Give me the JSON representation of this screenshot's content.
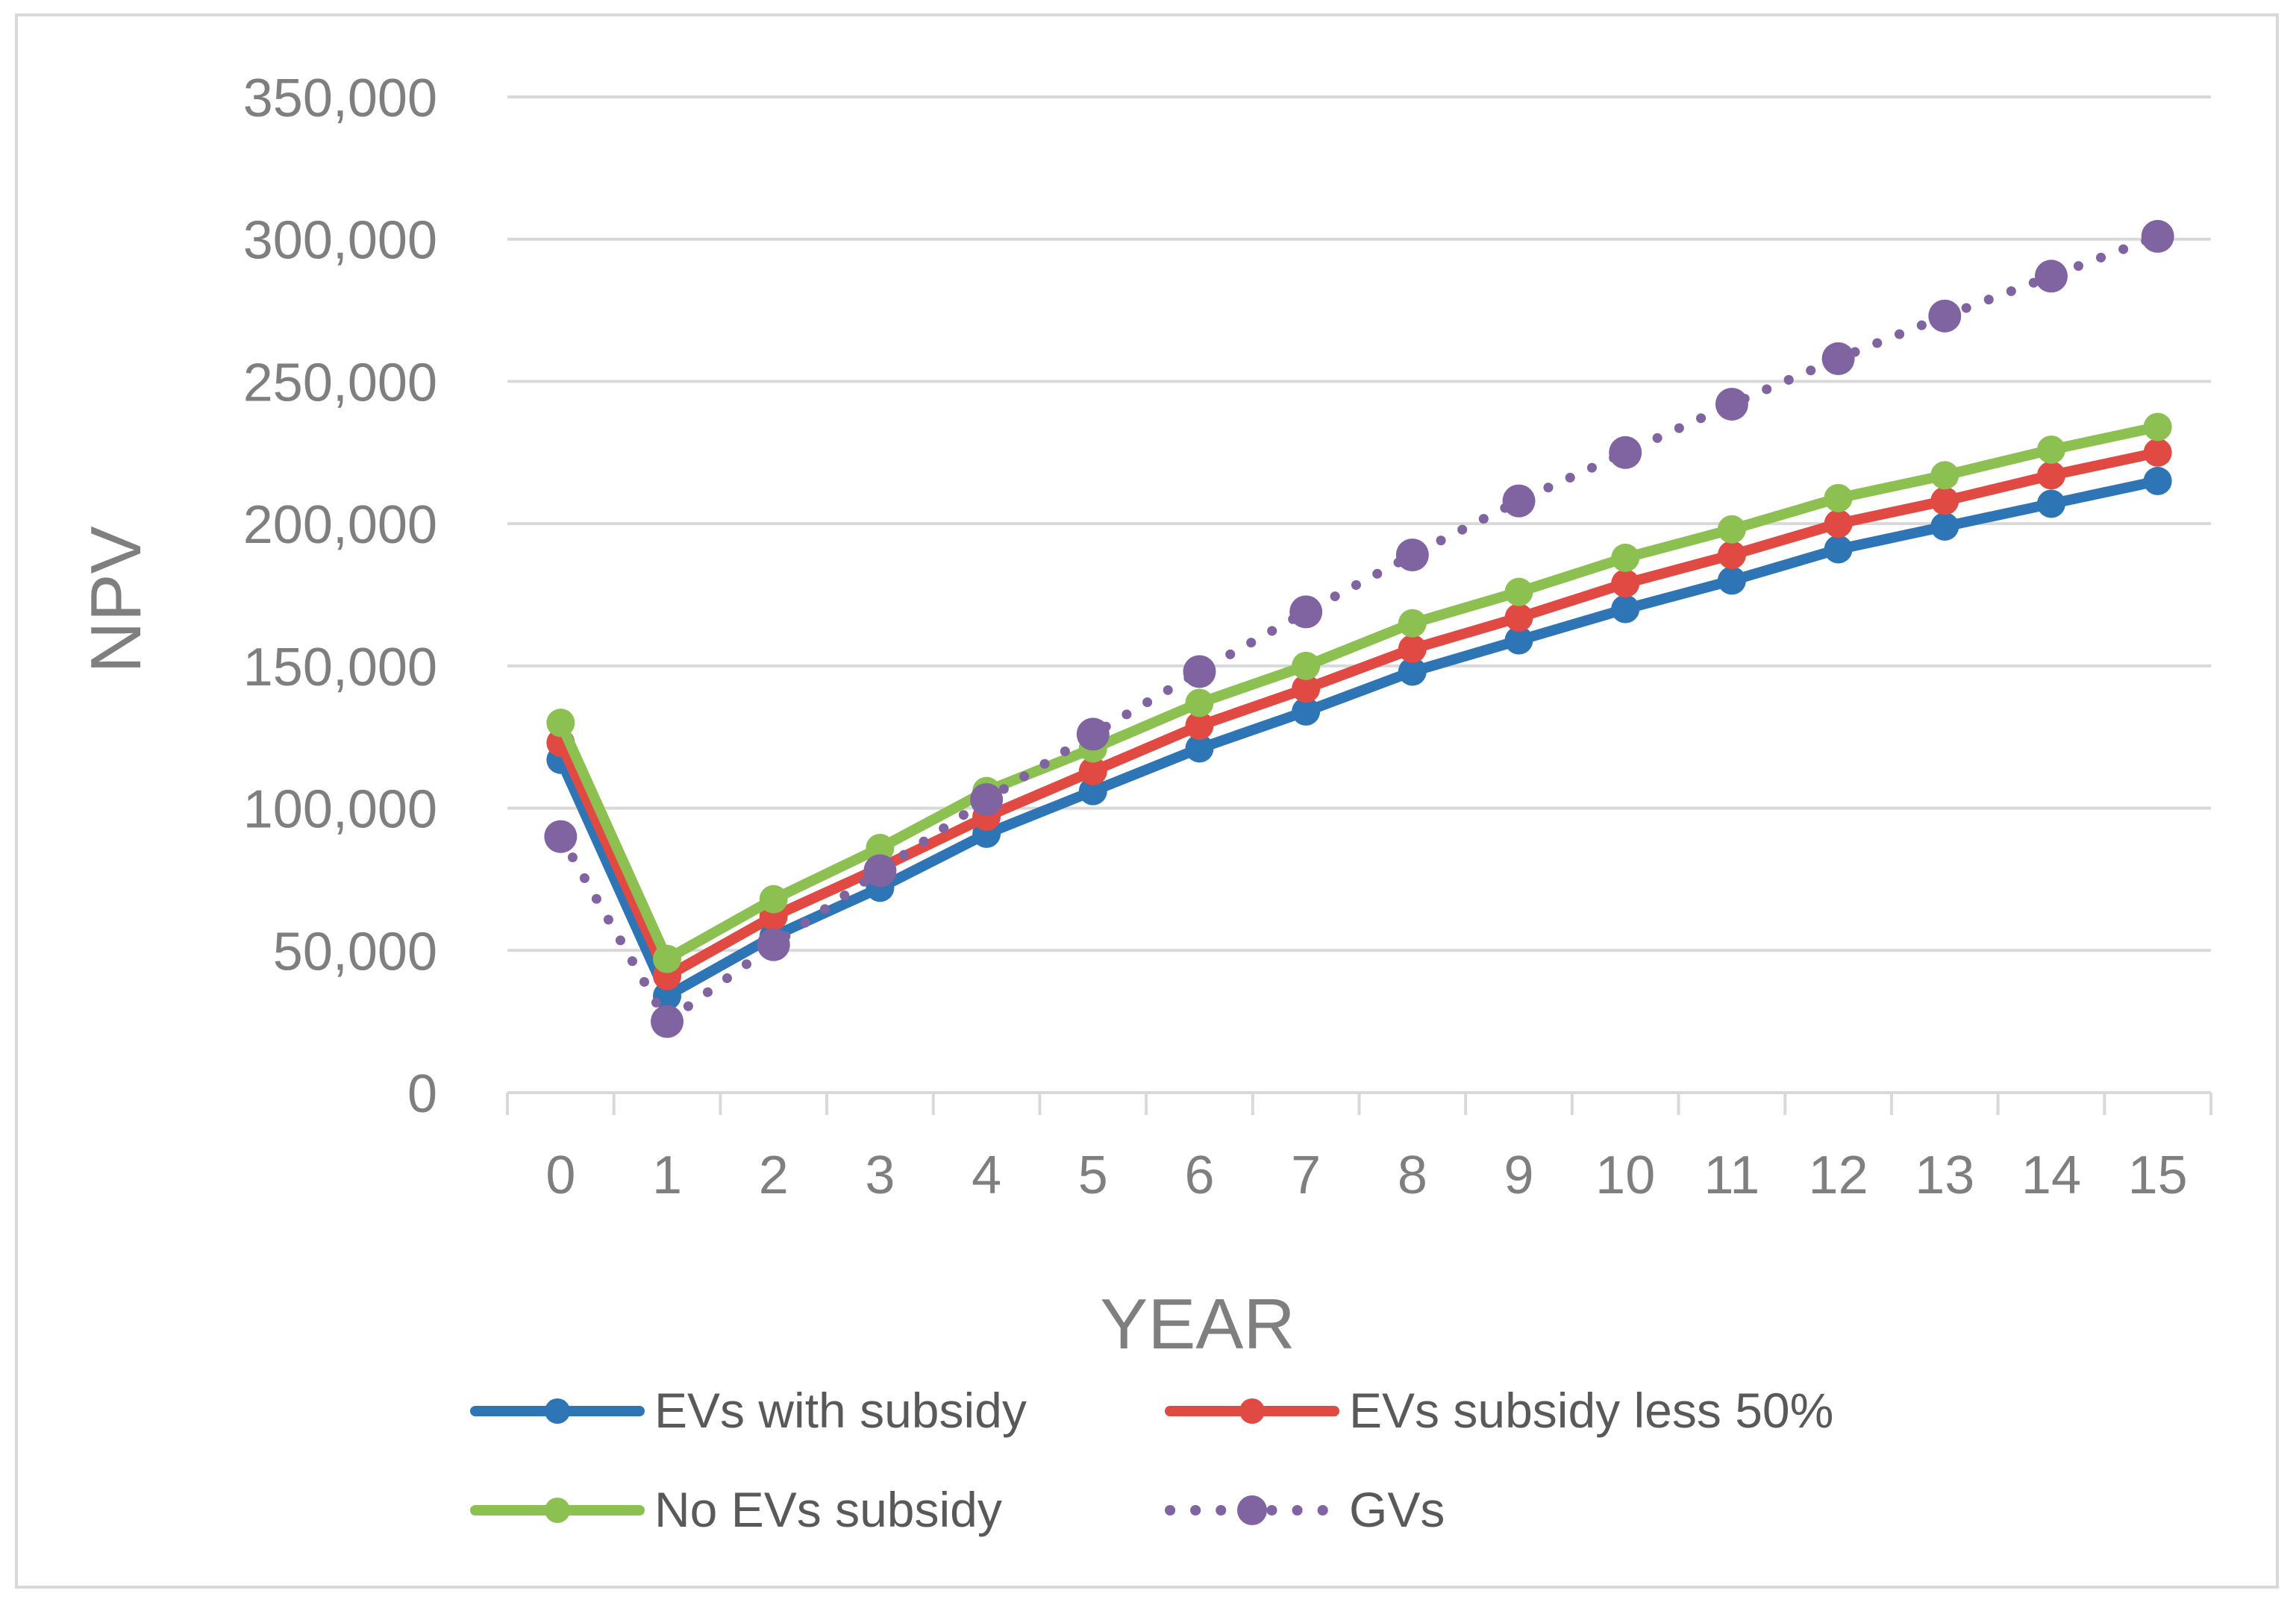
{
  "chart_data": {
    "type": "line",
    "title": "",
    "xlabel": "YEAR",
    "ylabel": "NPV",
    "categories": [
      "0",
      "1",
      "2",
      "3",
      "4",
      "5",
      "6",
      "7",
      "8",
      "9",
      "10",
      "11",
      "12",
      "13",
      "14",
      "15"
    ],
    "ylim": [
      0,
      350000
    ],
    "y_ticks": [
      0,
      50000,
      100000,
      150000,
      200000,
      250000,
      300000,
      350000
    ],
    "y_tick_labels": [
      "0",
      "50,000",
      "100,000",
      "150,000",
      "200,000",
      "250,000",
      "300,000",
      "350,000"
    ],
    "grid": true,
    "legend": "bottom",
    "series": [
      {
        "name": "EVs with subsidy",
        "color": "#2e75b6",
        "style": "solid",
        "values": [
          117000,
          34000,
          55000,
          72000,
          91000,
          106000,
          121000,
          134000,
          148000,
          159000,
          170000,
          180000,
          191000,
          199000,
          207000,
          215000
        ]
      },
      {
        "name": "EVs subsidy less 50%",
        "color": "#e04a43",
        "style": "solid",
        "values": [
          123000,
          41000,
          62000,
          79000,
          97000,
          113000,
          129000,
          142000,
          156000,
          167000,
          179000,
          189000,
          200000,
          208000,
          217000,
          225000
        ]
      },
      {
        "name": "No EVs subsidy",
        "color": "#8cc152",
        "style": "solid",
        "values": [
          130000,
          47000,
          68000,
          86000,
          106000,
          121000,
          137000,
          150000,
          165000,
          176000,
          188000,
          198000,
          209000,
          217000,
          226000,
          234000
        ]
      },
      {
        "name": "GVs",
        "color": "#8064a2",
        "style": "dotted",
        "values": [
          90000,
          25000,
          52000,
          78000,
          103000,
          126000,
          148000,
          169000,
          189000,
          208000,
          225000,
          242000,
          258000,
          273000,
          287000,
          301000
        ]
      }
    ]
  }
}
